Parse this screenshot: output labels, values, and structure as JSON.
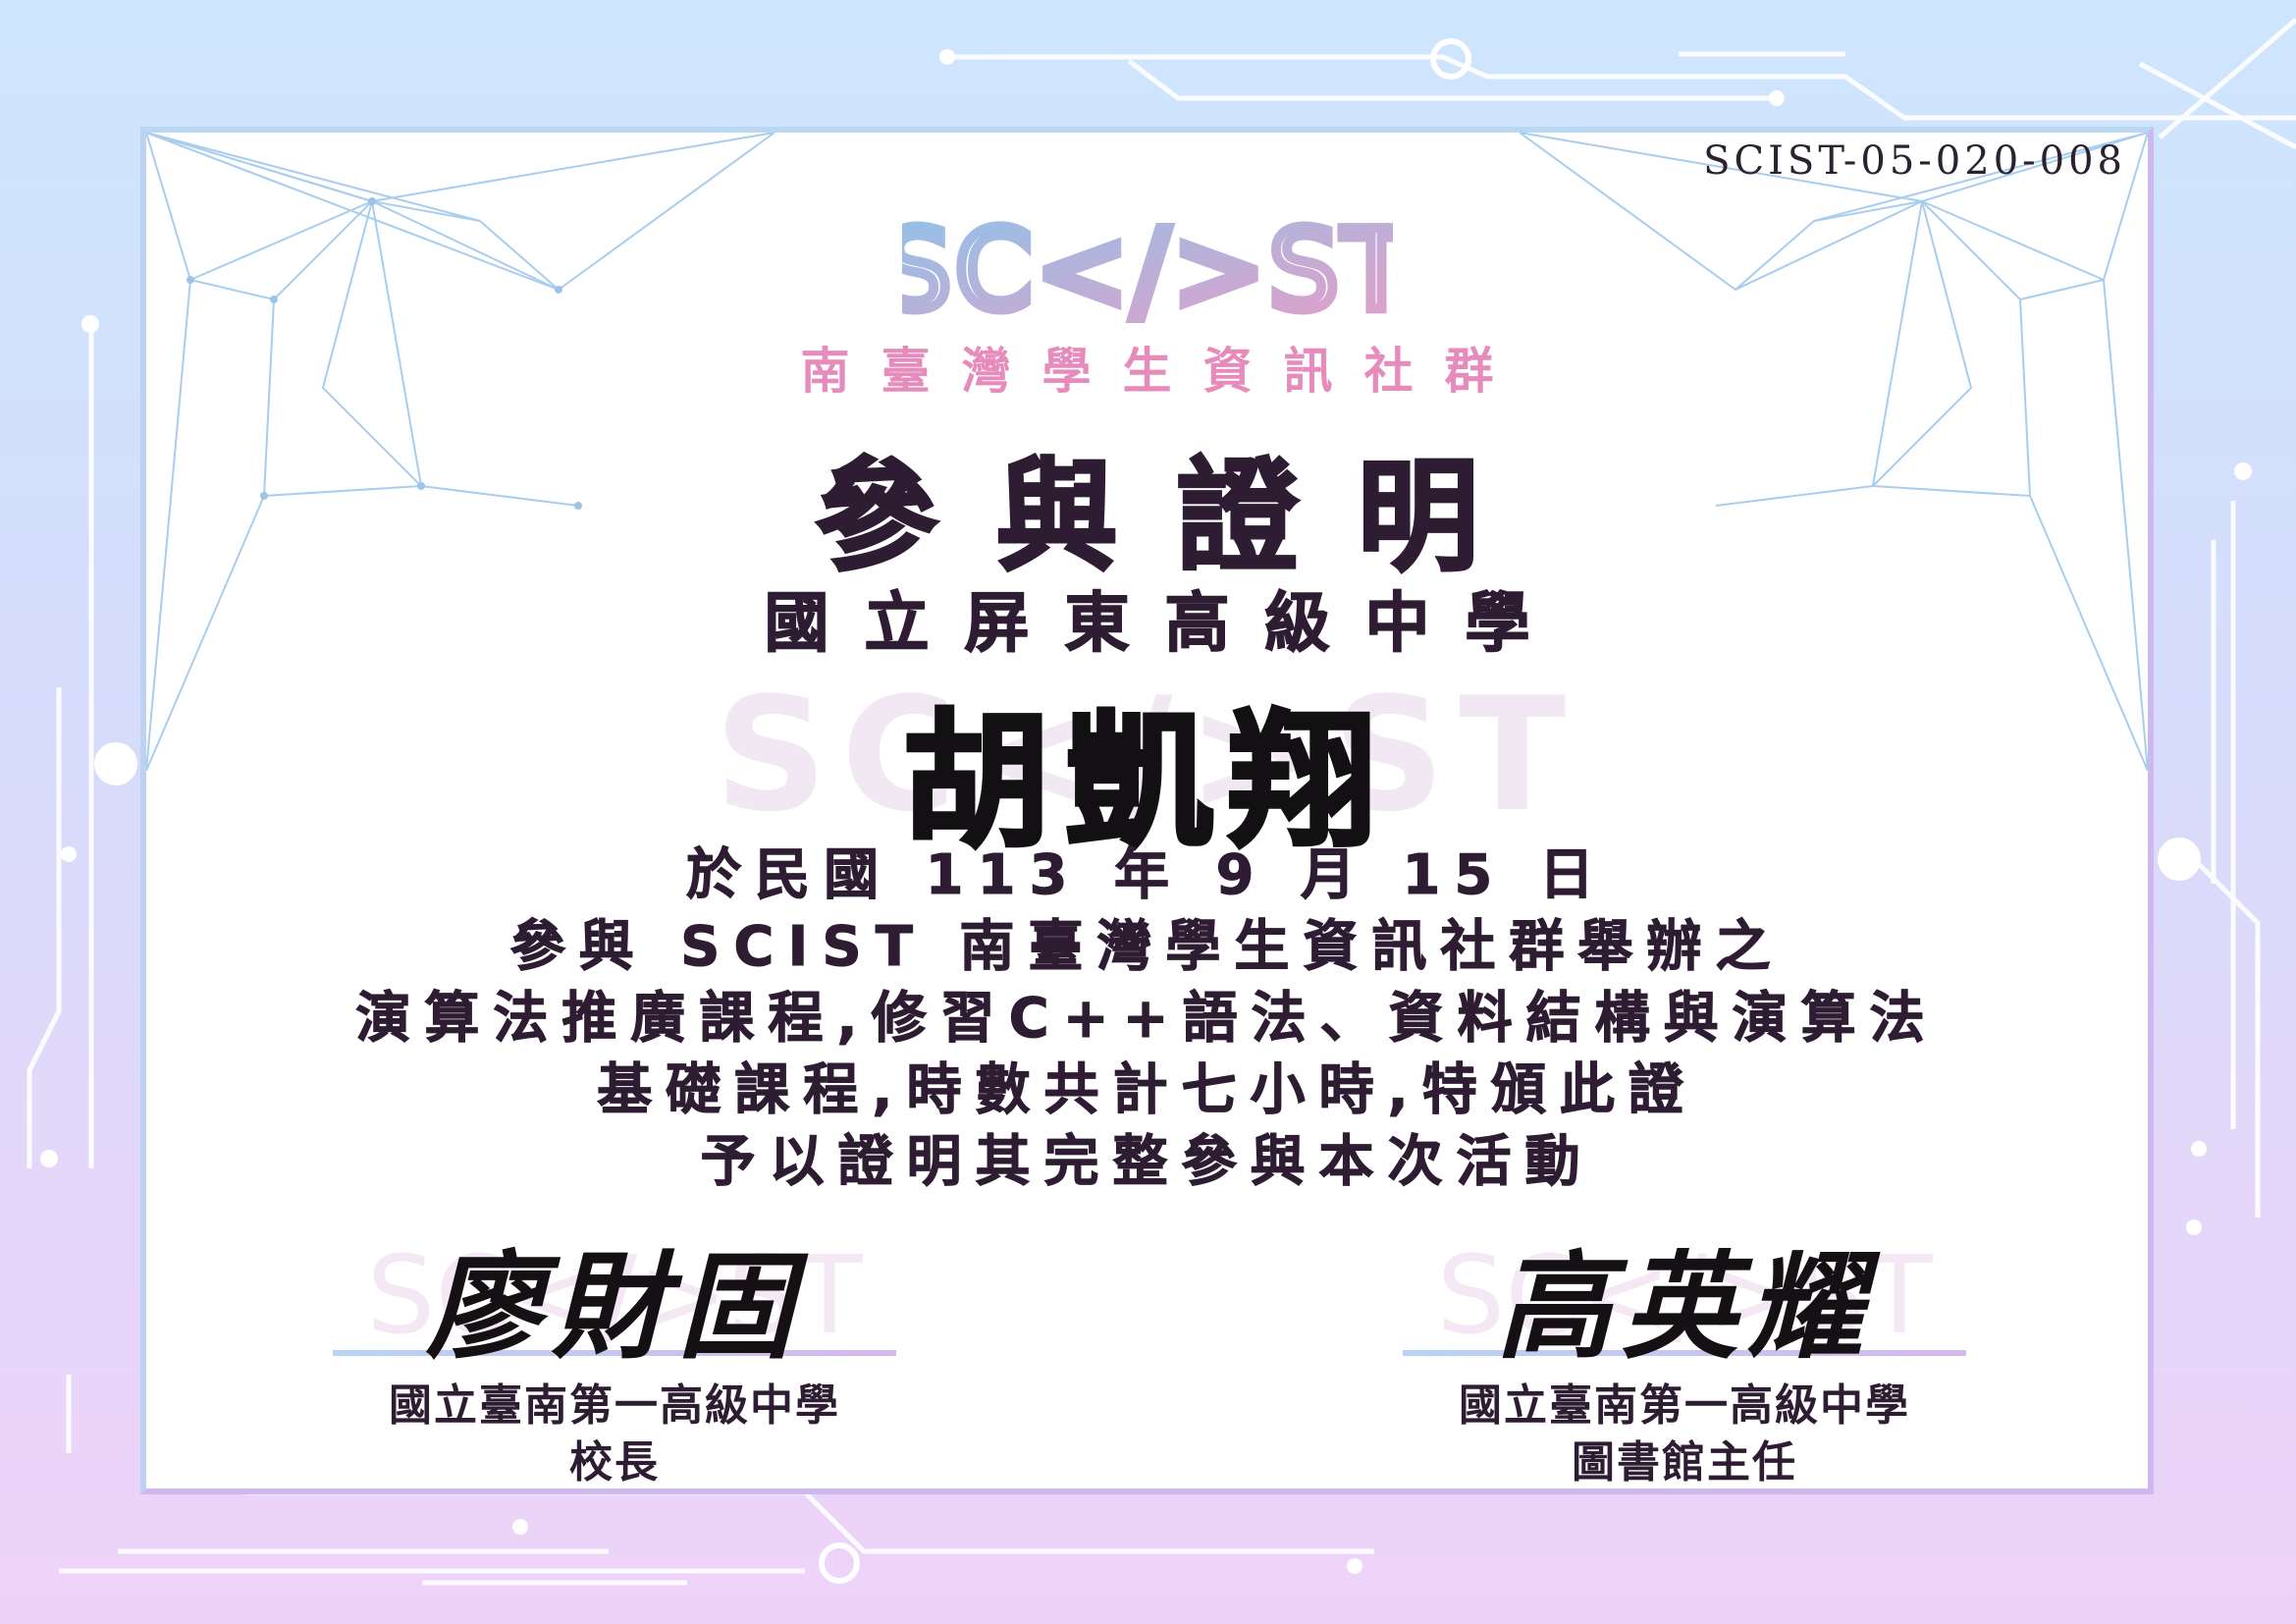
{
  "certificate": {
    "serial_no": "SCIST-05-020-008",
    "logo_text": "SC</>ST",
    "organization": "南臺灣學生資訊社群",
    "title": "參與證明",
    "recipient_school": "國立屏東高級中學",
    "recipient_name": "胡凱翔",
    "watermark": "SC</>ST",
    "body": [
      "於民國 113 年 9 月 15 日",
      "參與 SCIST 南臺灣學生資訊社群舉辦之",
      "演算法推廣課程,修習C++語法、資料結構與演算法",
      "基礎課程,時數共計七小時,特頒此證",
      "予以證明其完整參與本次活動"
    ]
  },
  "signatures": [
    {
      "signature": "廖財固",
      "org": "國立臺南第一高級中學",
      "role": "校長"
    },
    {
      "signature": "高英耀",
      "org": "國立臺南第一高級中學",
      "role": "圖書館主任"
    }
  ],
  "colors": {
    "logo_blue": "#8fc3ea",
    "logo_pink": "#e79cc6",
    "text_dark": "#2e1c33"
  }
}
